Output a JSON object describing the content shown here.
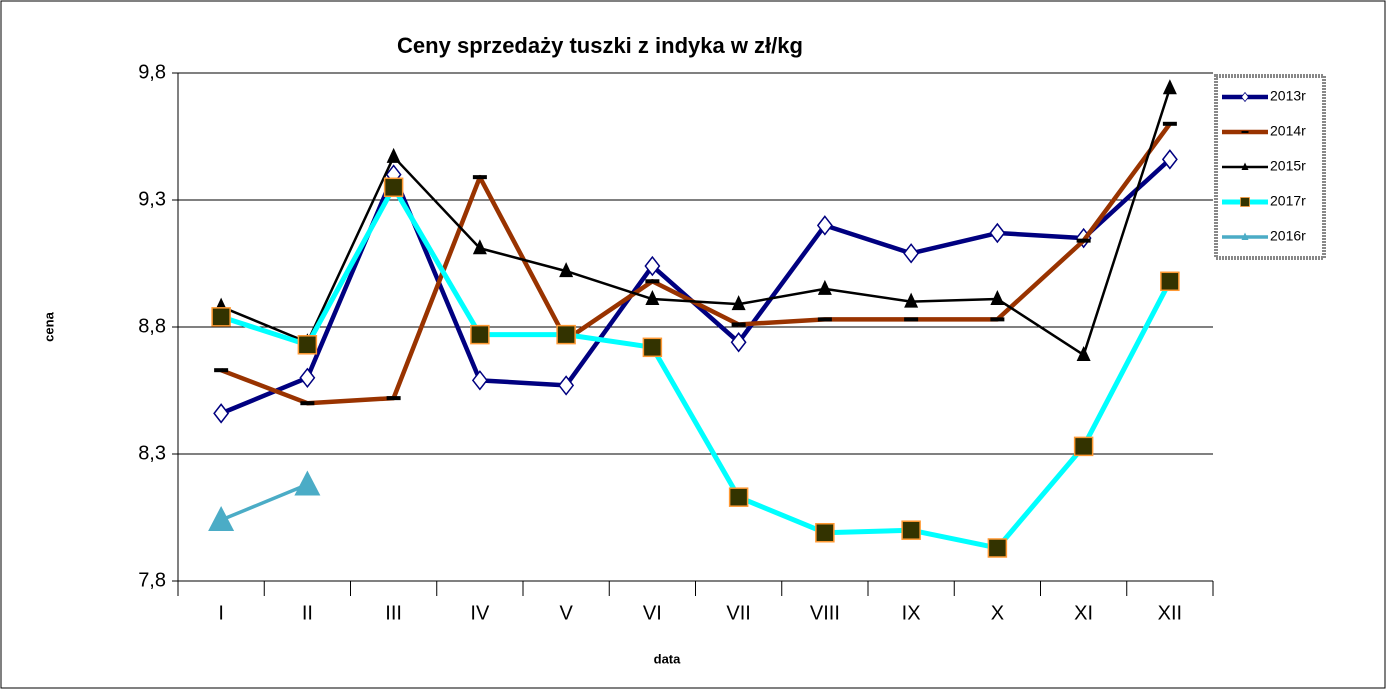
{
  "chart_data": {
    "type": "line",
    "title": "Ceny sprzedaży tuszki z indyka w zł/kg",
    "x_label": "data",
    "y_label": "cena",
    "categories": [
      "I",
      "II",
      "III",
      "IV",
      "V",
      "VI",
      "VII",
      "VIII",
      "IX",
      "X",
      "XI",
      "XII"
    ],
    "ylim": [
      7.8,
      9.8
    ],
    "yticks": [
      {
        "value": 7.8,
        "label": "7,8"
      },
      {
        "value": 8.3,
        "label": "8,3"
      },
      {
        "value": 8.8,
        "label": "8,8"
      },
      {
        "value": 9.3,
        "label": "9,3"
      },
      {
        "value": 9.8,
        "label": "9,8"
      }
    ],
    "grid": true,
    "legend": "right",
    "series": [
      {
        "name": "2013r",
        "color": "#000080",
        "marker": "diamond",
        "values": [
          8.46,
          8.6,
          9.4,
          8.59,
          8.57,
          9.04,
          8.74,
          9.2,
          9.09,
          9.17,
          9.15,
          9.46
        ]
      },
      {
        "name": "2014r",
        "color": "#993300",
        "marker": "dash",
        "values": [
          8.63,
          8.5,
          8.52,
          9.39,
          8.75,
          8.98,
          8.81,
          8.83,
          8.83,
          8.83,
          9.14,
          9.6
        ]
      },
      {
        "name": "2015r",
        "color": "#000000",
        "marker": "triangle",
        "values": [
          8.88,
          8.74,
          9.47,
          9.11,
          9.02,
          8.91,
          8.89,
          8.95,
          8.9,
          8.91,
          8.69,
          9.74
        ]
      },
      {
        "name": "2017r",
        "color": "#00ffff",
        "marker": "square",
        "values": [
          8.84,
          8.73,
          9.35,
          8.77,
          8.77,
          8.72,
          8.13,
          7.99,
          8.0,
          7.93,
          8.33,
          8.98
        ]
      },
      {
        "name": "2016r",
        "color": "#4bacc6",
        "marker": "big-triangle",
        "values": [
          8.04,
          8.18,
          null,
          null,
          null,
          null,
          null,
          null,
          null,
          null,
          null,
          null
        ]
      }
    ]
  }
}
